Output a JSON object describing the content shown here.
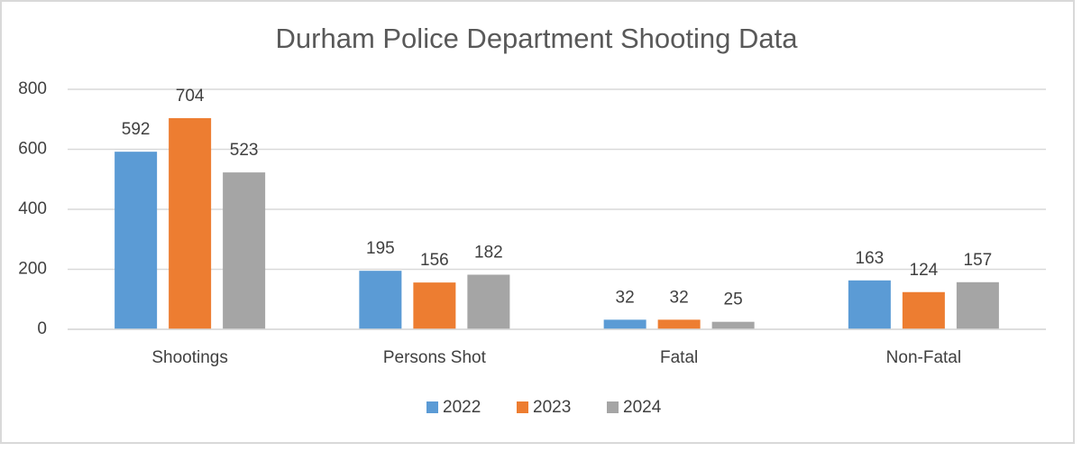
{
  "chart_data": {
    "type": "bar",
    "title": "Durham Police Department Shooting Data",
    "categories": [
      "Shootings",
      "Persons Shot",
      "Fatal",
      "Non-Fatal"
    ],
    "series": [
      {
        "name": "2022",
        "color": "#5b9bd5",
        "values": [
          592,
          195,
          32,
          163
        ]
      },
      {
        "name": "2023",
        "color": "#ed7d31",
        "values": [
          704,
          156,
          32,
          124
        ]
      },
      {
        "name": "2024",
        "color": "#a5a5a5",
        "values": [
          523,
          182,
          25,
          157
        ]
      }
    ],
    "ylim": [
      0,
      800
    ],
    "yticks": [
      0,
      200,
      400,
      600,
      800
    ],
    "grid": true,
    "legend": "bottom"
  }
}
